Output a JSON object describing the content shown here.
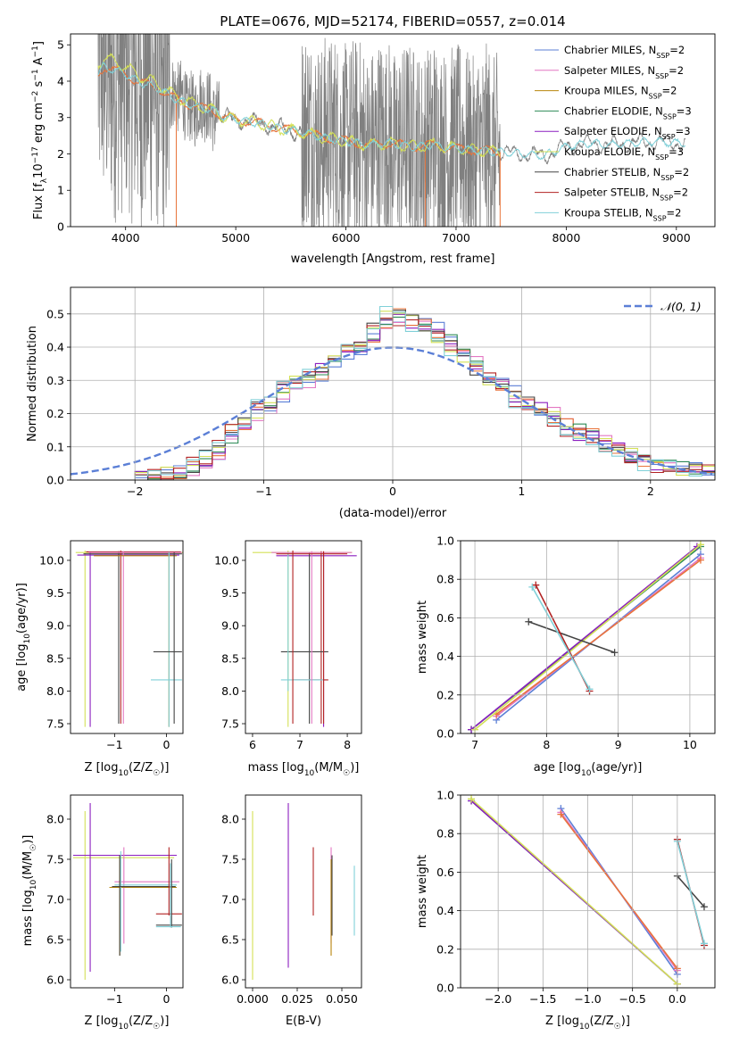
{
  "title": "PLATE=0676, MJD=52174, FIBERID=0557, z=0.014",
  "colors": {
    "Chabrier MILES": "#5b7fd6",
    "Salpeter MILES": "#e377c2",
    "Kroupa MILES": "#b8860b",
    "Chabrier ELODIE": "#2e8b57",
    "Salpeter ELODIE": "#8b1fbf",
    "Kroupa ELODIE": "#d4e157",
    "Chabrier STELIB": "#444444",
    "Salpeter STELIB": "#b22222",
    "Kroupa STELIB": "#80d0d8",
    "data": "#808080",
    "orange": "#e8743b"
  },
  "chart_data": [
    {
      "id": "spectrum",
      "type": "line",
      "xlabel": "wavelength [Angstrom, rest frame]",
      "ylabel": "Flux [f",
      "ylabel_sub": "λ",
      "ylabel_rest": "10",
      "ylabel_exp1": "−17",
      "ylabel_mid": " erg cm",
      "ylabel_exp2": "−2",
      "ylabel_s": " s",
      "ylabel_exp3": "−1",
      "ylabel_A": " A",
      "ylabel_exp4": "−1",
      "ylabel_end": "]",
      "xlim": [
        3500,
        9350
      ],
      "ylim": [
        0,
        5.3
      ],
      "xticks": [
        "4000",
        "5000",
        "6000",
        "7000",
        "8000",
        "9000"
      ],
      "yticks": [
        "0",
        "1",
        "2",
        "3",
        "4",
        "5"
      ],
      "legend": [
        {
          "label": "Chabrier MILES, N",
          "sub": "SSP",
          "tail": "=2"
        },
        {
          "label": "Salpeter MILES, N",
          "sub": "SSP",
          "tail": "=2"
        },
        {
          "label": "Kroupa MILES, N",
          "sub": "SSP",
          "tail": "=2"
        },
        {
          "label": "Chabrier ELODIE, N",
          "sub": "SSP",
          "tail": "=3"
        },
        {
          "label": "Salpeter ELODIE, N",
          "sub": "SSP",
          "tail": "=3"
        },
        {
          "label": "Kroupa ELODIE, N",
          "sub": "SSP",
          "tail": "=3"
        },
        {
          "label": "Chabrier STELIB, N",
          "sub": "SSP",
          "tail": "=2"
        },
        {
          "label": "Salpeter STELIB, N",
          "sub": "SSP",
          "tail": "=2"
        },
        {
          "label": "Kroupa STELIB, N",
          "sub": "SSP",
          "tail": "=2"
        }
      ],
      "model_envelope": [
        [
          3750,
          4.2
        ],
        [
          3800,
          4.4
        ],
        [
          3900,
          4.3
        ],
        [
          4000,
          4.2
        ],
        [
          4100,
          4.0
        ],
        [
          4200,
          3.9
        ],
        [
          4300,
          3.8
        ],
        [
          4400,
          3.6
        ],
        [
          4500,
          3.45
        ],
        [
          4600,
          3.35
        ],
        [
          4700,
          3.25
        ],
        [
          4800,
          3.2
        ],
        [
          4900,
          3.0
        ],
        [
          5000,
          2.95
        ],
        [
          5200,
          2.85
        ],
        [
          5400,
          2.7
        ],
        [
          5600,
          2.6
        ],
        [
          5800,
          2.45
        ],
        [
          6000,
          2.35
        ],
        [
          6200,
          2.25
        ],
        [
          6400,
          2.3
        ],
        [
          6600,
          2.2
        ],
        [
          6800,
          2.25
        ],
        [
          7000,
          2.15
        ],
        [
          7200,
          2.1
        ],
        [
          7400,
          2.05
        ],
        [
          7600,
          2.0
        ],
        [
          7800,
          1.95
        ],
        [
          8000,
          2.2
        ],
        [
          8200,
          2.3
        ],
        [
          8400,
          2.25
        ],
        [
          8600,
          2.3
        ],
        [
          8800,
          2.35
        ],
        [
          9000,
          2.3
        ],
        [
          9080,
          2.3
        ]
      ]
    },
    {
      "id": "residuals",
      "type": "line",
      "xlabel": "(data-model)/error",
      "ylabel": "Normed distribution",
      "xlim": [
        -2.5,
        2.5
      ],
      "ylim": [
        0,
        0.58
      ],
      "xticks": [
        "−2",
        "−1",
        "0",
        "1",
        "2"
      ],
      "yticks": [
        "0.0",
        "0.1",
        "0.2",
        "0.3",
        "0.4",
        "0.5"
      ],
      "legend": "𝒩(0, 1)",
      "histogram_envelope": [
        [
          -2.0,
          0.005
        ],
        [
          -1.8,
          0.01
        ],
        [
          -1.6,
          0.03
        ],
        [
          -1.4,
          0.07
        ],
        [
          -1.2,
          0.16
        ],
        [
          -1.0,
          0.22
        ],
        [
          -0.8,
          0.28
        ],
        [
          -0.6,
          0.32
        ],
        [
          -0.4,
          0.37
        ],
        [
          -0.2,
          0.42
        ],
        [
          0.0,
          0.5
        ],
        [
          0.2,
          0.47
        ],
        [
          0.4,
          0.43
        ],
        [
          0.6,
          0.36
        ],
        [
          0.8,
          0.3
        ],
        [
          1.0,
          0.24
        ],
        [
          1.2,
          0.2
        ],
        [
          1.4,
          0.15
        ],
        [
          1.6,
          0.12
        ],
        [
          1.8,
          0.09
        ],
        [
          2.0,
          0.05
        ],
        [
          2.2,
          0.035
        ],
        [
          2.4,
          0.025
        ]
      ]
    },
    {
      "id": "age-vs-Z",
      "type": "scatter",
      "xlabel": "Z [log",
      "xlabel_sub": "10",
      "xlabel_rest": "(Z/Z",
      "xlabel_sun": "☉",
      "xlabel_end": ")]",
      "ylabel": "age  [log",
      "ylabel_sub": "10",
      "ylabel_rest": "(age/yr)]",
      "xlim": [
        -1.85,
        0.32
      ],
      "ylim": [
        7.35,
        10.3
      ],
      "xticks": [
        "−1",
        "0"
      ],
      "yticks": [
        "7.5",
        "8.0",
        "8.5",
        "9.0",
        "9.5",
        "10.0"
      ]
    },
    {
      "id": "age-vs-mass",
      "type": "scatter",
      "xlabel": "mass [log",
      "xlabel_sub": "10",
      "xlabel_rest": "(M/M",
      "xlabel_sun": "☉",
      "xlabel_end": ")]",
      "xlim": [
        5.85,
        8.3
      ],
      "ylim": [
        7.35,
        10.3
      ],
      "xticks": [
        "6",
        "7",
        "8"
      ],
      "yticks": [
        "7.5",
        "8.0",
        "8.5",
        "9.0",
        "9.5",
        "10.0"
      ]
    },
    {
      "id": "weight-vs-age",
      "type": "line",
      "xlabel": "age  [log",
      "xlabel_sub": "10",
      "xlabel_rest": "(age/yr)]",
      "ylabel": "mass weight",
      "xlim": [
        6.8,
        10.35
      ],
      "ylim": [
        0,
        1
      ],
      "xticks": [
        "7",
        "8",
        "9",
        "10"
      ],
      "yticks": [
        "0.0",
        "0.2",
        "0.4",
        "0.6",
        "0.8",
        "1.0"
      ],
      "series": [
        {
          "name": "Chabrier MILES",
          "x": [
            7.3,
            10.15
          ],
          "y": [
            0.07,
            0.93
          ]
        },
        {
          "name": "Salpeter MILES",
          "x": [
            7.3,
            10.15
          ],
          "y": [
            0.09,
            0.91
          ]
        },
        {
          "name": "Kroupa MILES",
          "x": [
            7.3,
            10.15
          ],
          "y": [
            0.1,
            0.9
          ]
        },
        {
          "name": "Chabrier ELODIE",
          "x": [
            6.95,
            10.15
          ],
          "y": [
            0.02,
            0.97
          ]
        },
        {
          "name": "Salpeter ELODIE",
          "x": [
            6.95,
            10.1
          ],
          "y": [
            0.02,
            0.97
          ]
        },
        {
          "name": "Kroupa ELODIE",
          "x": [
            7.0,
            10.15
          ],
          "y": [
            0.02,
            0.98
          ]
        },
        {
          "name": "Chabrier STELIB",
          "x": [
            7.75,
            8.95
          ],
          "y": [
            0.58,
            0.42
          ]
        },
        {
          "name": "Salpeter STELIB",
          "x": [
            7.85,
            8.6
          ],
          "y": [
            0.77,
            0.22
          ]
        },
        {
          "name": "Kroupa STELIB",
          "x": [
            7.8,
            8.6
          ],
          "y": [
            0.76,
            0.23
          ]
        }
      ]
    },
    {
      "id": "mass-vs-Z",
      "type": "scatter",
      "xlabel": "Z [log",
      "xlabel_sub": "10",
      "xlabel_rest": "(Z/Z",
      "xlabel_sun": "☉",
      "xlabel_end": ")]",
      "ylabel": "mass [log",
      "ylabel_sub": "10",
      "ylabel_rest": "(M/M",
      "ylabel_sun": "☉",
      "ylabel_end": ")]",
      "xlim": [
        -1.85,
        0.32
      ],
      "ylim": [
        5.9,
        8.3
      ],
      "xticks": [
        "−1",
        "0"
      ],
      "yticks": [
        "6.0",
        "6.5",
        "7.0",
        "7.5",
        "8.0"
      ]
    },
    {
      "id": "mass-vs-EBV",
      "type": "scatter",
      "xlabel": "E(B-V)",
      "xlim": [
        -0.004,
        0.061
      ],
      "ylim": [
        5.9,
        8.3
      ],
      "xticks": [
        "0.000",
        "0.025",
        "0.050"
      ],
      "yticks": [
        "6.0",
        "6.5",
        "7.0",
        "7.5",
        "8.0"
      ]
    },
    {
      "id": "weight-vs-Z",
      "type": "line",
      "xlabel": "Z [log",
      "xlabel_sub": "10",
      "xlabel_rest": "(Z/Z",
      "xlabel_sun": "☉",
      "xlabel_end": ")]",
      "ylabel": "mass weight",
      "xlim": [
        -2.42,
        0.42
      ],
      "ylim": [
        0,
        1
      ],
      "xticks": [
        "−2.0",
        "−1.5",
        "−1.0",
        "−0.5",
        "0.0"
      ],
      "yticks": [
        "0.0",
        "0.2",
        "0.4",
        "0.6",
        "0.8",
        "1.0"
      ],
      "series": [
        {
          "name": "Chabrier MILES",
          "x": [
            -1.3,
            0.0
          ],
          "y": [
            0.93,
            0.07
          ]
        },
        {
          "name": "Salpeter MILES",
          "x": [
            -1.3,
            0.0
          ],
          "y": [
            0.91,
            0.09
          ]
        },
        {
          "name": "Kroupa MILES",
          "x": [
            -1.3,
            0.0
          ],
          "y": [
            0.9,
            0.1
          ]
        },
        {
          "name": "Chabrier ELODIE",
          "x": [
            -2.3,
            0.0
          ],
          "y": [
            0.97,
            0.02
          ]
        },
        {
          "name": "Salpeter ELODIE",
          "x": [
            -2.3,
            0.0
          ],
          "y": [
            0.97,
            0.02
          ]
        },
        {
          "name": "Kroupa ELODIE",
          "x": [
            -2.3,
            0.0
          ],
          "y": [
            0.98,
            0.02
          ]
        },
        {
          "name": "Chabrier STELIB",
          "x": [
            0.0,
            0.3
          ],
          "y": [
            0.58,
            0.42
          ]
        },
        {
          "name": "Salpeter STELIB",
          "x": [
            0.0,
            0.3
          ],
          "y": [
            0.77,
            0.22
          ]
        },
        {
          "name": "Kroupa STELIB",
          "x": [
            0.0,
            0.3
          ],
          "y": [
            0.76,
            0.23
          ]
        }
      ]
    }
  ]
}
